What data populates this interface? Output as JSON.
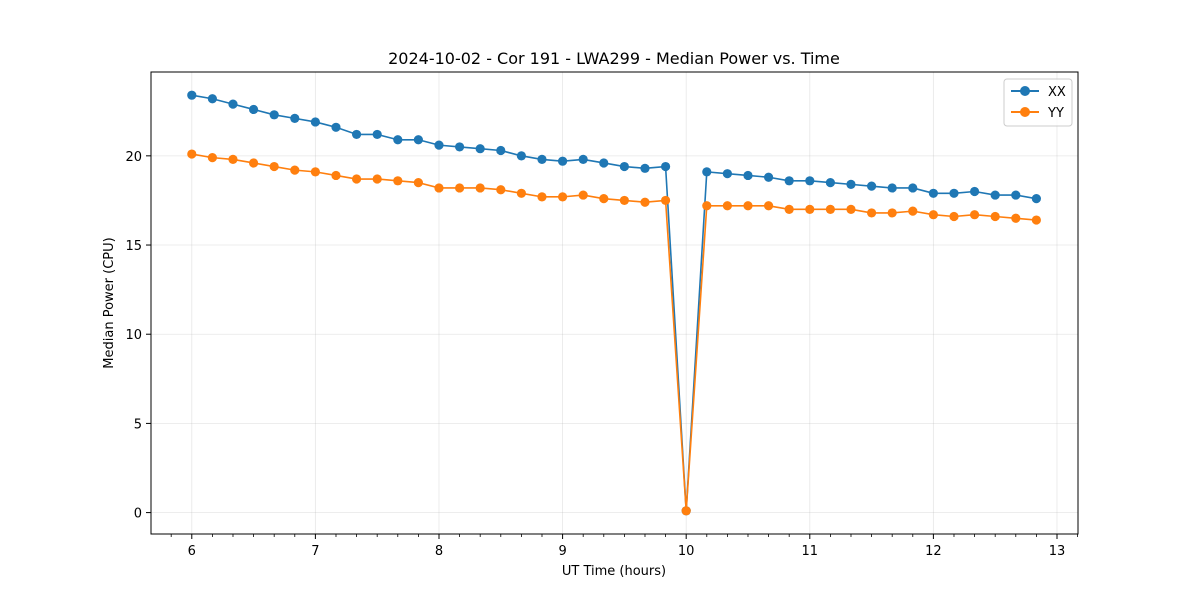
{
  "chart_data": {
    "type": "line",
    "title": "2024-10-02 - Cor 191 - LWA299 - Median Power vs. Time",
    "xlabel": "UT Time (hours)",
    "ylabel": "Median Power (CPU)",
    "xlim": [
      5.67,
      13.17
    ],
    "ylim": [
      -1.2,
      24.7
    ],
    "xticks": [
      6,
      7,
      8,
      9,
      10,
      11,
      12,
      13
    ],
    "xtick_labels": [
      "6",
      "7",
      "8",
      "9",
      "10",
      "11",
      "12",
      "13"
    ],
    "yticks": [
      0,
      5,
      10,
      15,
      20
    ],
    "ytick_labels": [
      "0",
      "5",
      "10",
      "15",
      "20"
    ],
    "grid": true,
    "legend_position": "top-right",
    "x": [
      6.0,
      6.1667,
      6.3333,
      6.5,
      6.6667,
      6.8333,
      7.0,
      7.1667,
      7.3333,
      7.5,
      7.6667,
      7.8333,
      8.0,
      8.1667,
      8.3333,
      8.5,
      8.6667,
      8.8333,
      9.0,
      9.1667,
      9.3333,
      9.5,
      9.6667,
      9.8333,
      10.0,
      10.1667,
      10.3333,
      10.5,
      10.6667,
      10.8333,
      11.0,
      11.1667,
      11.3333,
      11.5,
      11.6667,
      11.8333,
      12.0,
      12.1667,
      12.3333,
      12.5,
      12.6667,
      12.8333
    ],
    "series": [
      {
        "name": "XX",
        "color": "#1f77b4",
        "values": [
          23.4,
          23.2,
          22.9,
          22.6,
          22.3,
          22.1,
          21.9,
          21.6,
          21.2,
          21.2,
          20.9,
          20.9,
          20.6,
          20.5,
          20.4,
          20.3,
          20.0,
          19.8,
          19.7,
          19.8,
          19.6,
          19.4,
          19.3,
          19.4,
          0.1,
          19.1,
          19.0,
          18.9,
          18.8,
          18.6,
          18.6,
          18.5,
          18.4,
          18.3,
          18.2,
          18.2,
          17.9,
          17.9,
          18.0,
          17.8,
          17.8,
          17.6
        ]
      },
      {
        "name": "YY",
        "color": "#ff7f0e",
        "values": [
          20.1,
          19.9,
          19.8,
          19.6,
          19.4,
          19.2,
          19.1,
          18.9,
          18.7,
          18.7,
          18.6,
          18.5,
          18.2,
          18.2,
          18.2,
          18.1,
          17.9,
          17.7,
          17.7,
          17.8,
          17.6,
          17.5,
          17.4,
          17.5,
          0.1,
          17.2,
          17.2,
          17.2,
          17.2,
          17.0,
          17.0,
          17.0,
          17.0,
          16.8,
          16.8,
          16.9,
          16.7,
          16.6,
          16.7,
          16.6,
          16.5,
          16.4
        ]
      }
    ]
  }
}
